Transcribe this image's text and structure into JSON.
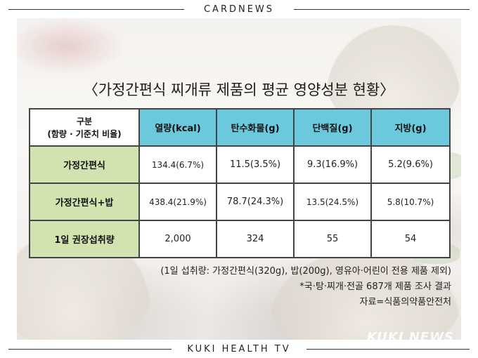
{
  "header": {
    "label": "CARDNEWS"
  },
  "footer": {
    "label": "KUKI HEALTH TV"
  },
  "title": "〈가정간편식 찌개류 제품의 평균 영양성분 현황〉",
  "table": {
    "corner_line1": "구분",
    "corner_line2": "(함량 · 기준치 비율)",
    "columns": [
      "열량(kcal)",
      "탄수화물(g)",
      "단백질(g)",
      "지방(g)"
    ],
    "rows": [
      {
        "label": "가정간편식",
        "values": [
          "134.4(6.7%)",
          "11.5(3.5%)",
          "9.3(16.9%)",
          "5.2(9.6%)"
        ]
      },
      {
        "label": "가정간편식+밥",
        "values": [
          "438.4(21.9%)",
          "78.7(24.3%)",
          "13.5(24.5%)",
          "5.8(10.7%)"
        ]
      },
      {
        "label": "1일 권장섭취량",
        "values": [
          "2,000",
          "324",
          "55",
          "54"
        ]
      }
    ]
  },
  "notes": [
    "(1일 섭취량: 가정간편식(320g), 밥(200g), 영유아·어린이 전용 제품 제외)",
    "*국·탕·찌개·전골 687개 제품 조사 결과",
    "자료=식품의약품안전처"
  ],
  "watermark": "KUKI NEWS",
  "colors": {
    "header_cell": "#6cc8dc",
    "row_label_cell": "#d2e3b0"
  }
}
